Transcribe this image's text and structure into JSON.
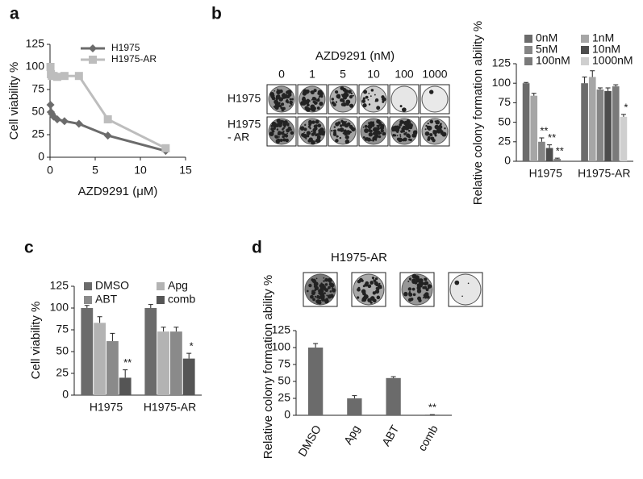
{
  "panel_labels": [
    "a",
    "b",
    "c",
    "d"
  ],
  "colony_plates": [
    {
      "title": "AZD9291 (nM)",
      "columns": [
        "0",
        "1",
        "5",
        "10",
        "100",
        "1000"
      ],
      "rows": [
        [
          "H1975"
        ],
        [
          "H1975",
          "- AR"
        ]
      ]
    },
    {
      "title": "H1975-AR"
    }
  ],
  "chart_data": [
    {
      "type": "line",
      "xlabel": "AZD9291 (μM)",
      "ylabel": "Cell viability %",
      "xlim": [
        0,
        15
      ],
      "xticks": [
        0,
        5,
        10,
        15
      ],
      "ylim": [
        0,
        125
      ],
      "yticks": [
        0,
        25,
        50,
        75,
        100,
        125
      ],
      "series": [
        {
          "name": "H1975",
          "color": "#6b6b6b",
          "marker": "diamond",
          "x": [
            0.05,
            0.1,
            0.2,
            0.4,
            0.8,
            1.6,
            3.2,
            6.4,
            12.8
          ],
          "values": [
            58,
            50,
            48,
            45,
            42,
            40,
            37,
            24,
            7
          ]
        },
        {
          "name": "H1975-AR",
          "color": "#bdbdbd",
          "marker": "square",
          "x": [
            0.05,
            0.1,
            0.2,
            0.4,
            0.8,
            1.6,
            3.2,
            6.4,
            12.8
          ],
          "values": [
            100,
            92,
            90,
            90,
            89,
            90,
            90,
            42,
            10
          ]
        }
      ]
    },
    {
      "type": "bar",
      "ylabel": "Relative colony formation ability %",
      "categories": [
        "H1975",
        "H1975-AR"
      ],
      "ylim": [
        0,
        125
      ],
      "yticks": [
        0,
        25,
        50,
        75,
        100,
        125
      ],
      "series": [
        {
          "name": "0nM",
          "color": "#6b6b6b",
          "values": [
            100,
            100
          ],
          "errors": [
            1,
            8
          ],
          "significance": [
            null,
            null
          ]
        },
        {
          "name": "1nM",
          "color": "#a6a6a6",
          "values": [
            84,
            108
          ],
          "errors": [
            3,
            8
          ],
          "significance": [
            null,
            null
          ]
        },
        {
          "name": "5nM",
          "color": "#858585",
          "values": [
            25,
            92
          ],
          "errors": [
            5,
            2
          ],
          "significance": [
            "**",
            null
          ]
        },
        {
          "name": "10nM",
          "color": "#4d4d4d",
          "values": [
            17,
            90
          ],
          "errors": [
            4,
            4
          ],
          "significance": [
            "**",
            null
          ]
        },
        {
          "name": "100nM",
          "color": "#7a7a7a",
          "values": [
            3,
            96
          ],
          "errors": [
            1,
            2
          ],
          "significance": [
            "**",
            null
          ]
        },
        {
          "name": "1000nM",
          "color": "#cfcfcf",
          "values": [
            0,
            57
          ],
          "errors": [
            0,
            3
          ],
          "significance": [
            null,
            "*"
          ]
        }
      ]
    },
    {
      "type": "bar",
      "ylabel": "Cell viability %",
      "categories": [
        "H1975",
        "H1975-AR"
      ],
      "ylim": [
        0,
        125
      ],
      "yticks": [
        0,
        25,
        50,
        75,
        100,
        125
      ],
      "series": [
        {
          "name": "DMSO",
          "color": "#6b6b6b",
          "values": [
            100,
            100
          ],
          "errors": [
            3,
            4
          ],
          "significance": [
            null,
            null
          ]
        },
        {
          "name": "Apg",
          "color": "#b3b3b3",
          "values": [
            83,
            73
          ],
          "errors": [
            7,
            5
          ],
          "significance": [
            null,
            null
          ]
        },
        {
          "name": "ABT",
          "color": "#8a8a8a",
          "values": [
            62,
            73
          ],
          "errors": [
            9,
            5
          ],
          "significance": [
            null,
            null
          ]
        },
        {
          "name": "comb",
          "color": "#555555",
          "values": [
            20,
            42
          ],
          "errors": [
            9,
            6
          ],
          "significance": [
            "**",
            "*"
          ]
        }
      ]
    },
    {
      "type": "bar",
      "ylabel": "Relative colony formation ability %",
      "categories": [
        "DMSO",
        "Apg",
        "ABT",
        "comb"
      ],
      "ylim": [
        0,
        125
      ],
      "yticks": [
        0,
        25,
        50,
        75,
        100,
        125
      ],
      "color": "#6b6b6b",
      "values": [
        100,
        25,
        55,
        1
      ],
      "errors": [
        6,
        4,
        2,
        0
      ],
      "significance": [
        null,
        null,
        null,
        "**"
      ]
    }
  ]
}
